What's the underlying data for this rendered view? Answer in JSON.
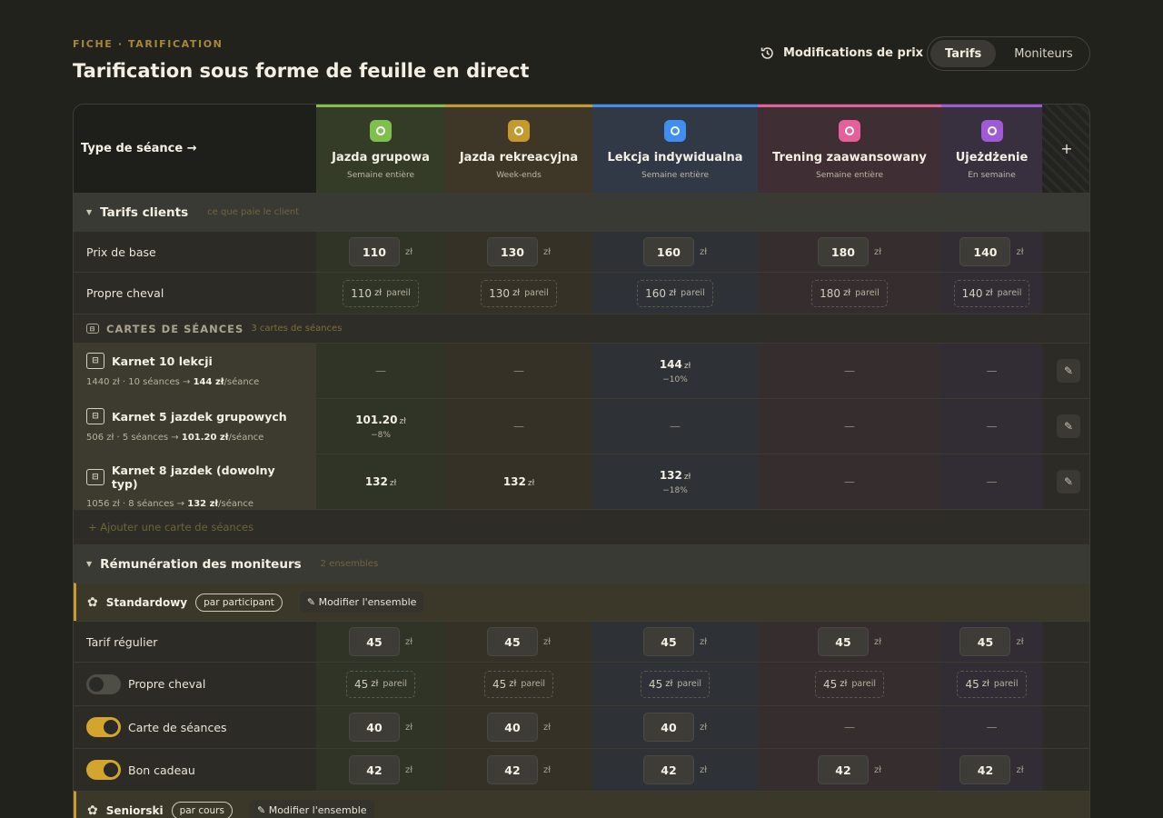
{
  "eyebrow": "FICHE · TARIFICATION",
  "title": "Tarification sous forme de feuille en direct",
  "modifications_label": "Modifications de prix",
  "tabs": [
    {
      "label": "Tarifs",
      "active": true
    },
    {
      "label": "Moniteurs",
      "active": false
    }
  ],
  "type_label": "Type de séance →",
  "add_column_label": "+",
  "services": [
    {
      "name": "Jazda grupowa",
      "sub": "Semaine entière",
      "color": "#7fbf4d",
      "icon": "users-icon"
    },
    {
      "name": "Jazda rekreacyjna",
      "sub": "Week-ends",
      "color": "#c49a2e",
      "icon": "sun-icon"
    },
    {
      "name": "Lekcja indywidualna",
      "sub": "Semaine entière",
      "color": "#3f8ef0",
      "icon": "circle-icon"
    },
    {
      "name": "Trening zaawansowany",
      "sub": "Semaine entière",
      "color": "#e5609a",
      "icon": "bolt-icon"
    },
    {
      "name": "Ujeżdżenie",
      "sub": "En semaine",
      "color": "#a05ad6",
      "icon": "flower-icon"
    }
  ],
  "unit": "zł",
  "pareil": "pareil",
  "dash": "—",
  "tarifs_clients": {
    "title": "Tarifs clients",
    "note": "ce que paie le client",
    "base": {
      "label": "Prix de base",
      "values": [
        "110",
        "130",
        "160",
        "180",
        "140"
      ]
    },
    "own_horse": {
      "label": "Propre cheval",
      "values": [
        "110",
        "130",
        "160",
        "180",
        "140"
      ]
    }
  },
  "cards_section": {
    "title": "CARTES DE SÉANCES",
    "note": "3 cartes de séances"
  },
  "cards": [
    {
      "name": "Karnet 10 lekcji",
      "meta_pre": "1440 zł · 10 séances → ",
      "meta_b": "144 zł",
      "meta_post": "/séance",
      "cells": [
        null,
        null,
        {
          "v": "144",
          "d": "−10%"
        },
        null,
        null
      ]
    },
    {
      "name": "Karnet 5 jazdek grupowych",
      "meta_pre": "506 zł · 5 séances → ",
      "meta_b": "101.20 zł",
      "meta_post": "/séance",
      "cells": [
        {
          "v": "101.20",
          "d": "−8%"
        },
        null,
        null,
        null,
        null
      ]
    },
    {
      "name": "Karnet 8 jazdek (dowolny typ)",
      "meta_pre": "1056 zł · 8 séances → ",
      "meta_b": "132 zł",
      "meta_post": "/séance",
      "cells": [
        {
          "v": "132",
          "d": ""
        },
        {
          "v": "132",
          "d": ""
        },
        {
          "v": "132",
          "d": "−18%"
        },
        null,
        null
      ]
    }
  ],
  "add_card_label": "+ Ajouter une carte de séances",
  "remuneration": {
    "title": "Rémunération des moniteurs",
    "note": "2 ensembles"
  },
  "groups": [
    {
      "name": "Standardowy",
      "tag": "par participant",
      "modify": "✎ Modifier l'ensemble"
    },
    {
      "name": "Seniorski",
      "tag": "par cours",
      "modify": "✎ Modifier l'ensemble"
    }
  ],
  "pay_rows": {
    "regular": {
      "label": "Tarif régulier",
      "values": [
        "45",
        "45",
        "45",
        "45",
        "45"
      ]
    },
    "own_horse": {
      "label": "Propre cheval",
      "toggle": false,
      "values": [
        "45",
        "45",
        "45",
        "45",
        "45"
      ]
    },
    "card": {
      "label": "Carte de séances",
      "toggle": true,
      "values": [
        "40",
        "40",
        "40",
        null,
        null
      ]
    },
    "gift": {
      "label": "Bon cadeau",
      "toggle": true,
      "values": [
        "42",
        "42",
        "42",
        "42",
        "42"
      ]
    }
  }
}
